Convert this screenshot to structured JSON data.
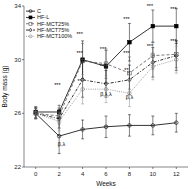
{
  "chart_data": {
    "type": "line",
    "x": [
      0,
      2,
      4,
      6,
      8,
      10,
      12
    ],
    "xlabel": "Weeks",
    "ylabel": "Body mass (g)",
    "xlim": [
      -1,
      13
    ],
    "xticks": [
      0,
      2,
      4,
      6,
      8,
      10,
      12
    ],
    "ylim": [
      22,
      34
    ],
    "yticks": [
      22,
      26,
      30,
      34
    ],
    "legend": "upper-left",
    "series": [
      {
        "name": "C",
        "color": "#000000",
        "marker": "open-circle",
        "line_style": "solid",
        "values": [
          26.0,
          24.3,
          24.8,
          25.0,
          25.1,
          25.1,
          25.3
        ],
        "errors": [
          0.4,
          1.3,
          0.7,
          0.8,
          0.8,
          0.7,
          0.7
        ]
      },
      {
        "name": "HF-L",
        "color": "#000000",
        "marker": "square",
        "line_style": "solid",
        "values": [
          26.1,
          26.1,
          30.0,
          29.5,
          31.3,
          32.5,
          32.5
        ],
        "errors": [
          0.4,
          0.5,
          1.4,
          1.2,
          1.4,
          1.2,
          1.3
        ]
      },
      {
        "name": "HF-MCT25%",
        "color": "#555555",
        "marker": "open-square",
        "line_style": "dashed",
        "values": [
          26.0,
          25.8,
          29.9,
          29.7,
          29.0,
          30.3,
          30.4
        ],
        "errors": [
          0.4,
          0.6,
          1.3,
          1.1,
          1.2,
          1.0,
          1.0
        ]
      },
      {
        "name": "HF-MCT75%",
        "color": "#000000",
        "marker": "open-diamond",
        "line_style": "dashdot",
        "values": [
          26.0,
          25.6,
          28.5,
          28.2,
          28.5,
          29.8,
          30.3
        ],
        "errors": [
          0.4,
          0.7,
          1.3,
          1.0,
          1.1,
          1.1,
          1.1
        ]
      },
      {
        "name": "HF-MCT100%",
        "color": "#888888",
        "marker": "open-circle",
        "line_style": "dotted",
        "values": [
          26.0,
          25.4,
          27.8,
          27.8,
          27.5,
          29.5,
          30.0
        ],
        "errors": [
          0.4,
          0.7,
          1.1,
          1.0,
          1.0,
          1.0,
          1.0
        ]
      }
    ],
    "annotations": [
      {
        "text": "***",
        "x": 1.85,
        "y": 27.9
      },
      {
        "text": "***",
        "x": 3.75,
        "y": 31.7
      },
      {
        "text": "***",
        "x": 3.75,
        "y": 30.3
      },
      {
        "text": "**",
        "x": 3.75,
        "y": 28.2
      },
      {
        "text": "***",
        "x": 5.75,
        "y": 30.6
      },
      {
        "text": "***",
        "x": 5.75,
        "y": 29.3
      },
      {
        "text": "***",
        "x": 7.75,
        "y": 32.8
      },
      {
        "text": "***",
        "x": 7.75,
        "y": 30.3
      },
      {
        "text": "**",
        "x": 7.75,
        "y": 29.0
      },
      {
        "text": "***",
        "x": 9.75,
        "y": 33.8
      },
      {
        "text": "***",
        "x": 9.75,
        "y": 30.8
      },
      {
        "text": "***",
        "x": 11.75,
        "y": 33.6
      },
      {
        "text": "***",
        "x": 11.75,
        "y": 31.2
      },
      {
        "text": "β,λ",
        "x": 2.2,
        "y": 23.5
      },
      {
        "text": "β,λ,λ",
        "x": 6.0,
        "y": 27.2
      },
      {
        "text": "β,λ",
        "x": 8.0,
        "y": 27.0
      }
    ]
  }
}
